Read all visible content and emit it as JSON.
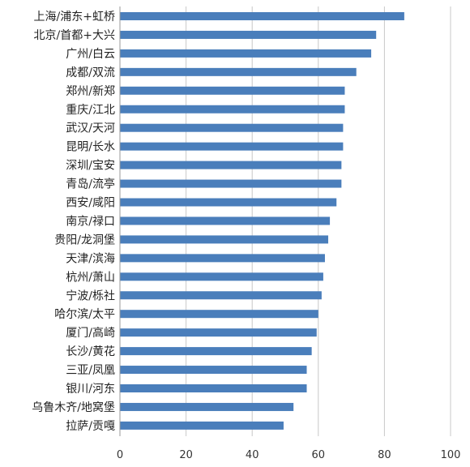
{
  "chart_data": {
    "type": "bar",
    "orientation": "horizontal",
    "title": "",
    "xlabel": "",
    "ylabel": "",
    "xlim": [
      0,
      100
    ],
    "xticks": [
      0,
      20,
      40,
      60,
      80,
      100
    ],
    "grid": true,
    "legend": "none",
    "bar_color": "#4a7ebb",
    "categories": [
      "上海/浦东+虹桥",
      "北京/首都+大兴",
      "广州/白云",
      "成都/双流",
      "郑州/新郑",
      "重庆/江北",
      "武汉/天河",
      "昆明/长水",
      "深圳/宝安",
      "青岛/流亭",
      "西安/咸阳",
      "南京/禄口",
      "贵阳/龙洞堡",
      "天津/滨海",
      "杭州/萧山",
      "宁波/栎社",
      "哈尔滨/太平",
      "厦门/高崎",
      "长沙/黄花",
      "三亚/凤凰",
      "银川/河东",
      "乌鲁木齐/地窝堡",
      "拉萨/贡嘎"
    ],
    "values": [
      86,
      77.5,
      76,
      71.5,
      68,
      68,
      67.5,
      67.5,
      67,
      67,
      65.5,
      63.5,
      63,
      62,
      61.5,
      61,
      60,
      59.5,
      58,
      56.5,
      56.5,
      52.5,
      49.5
    ]
  }
}
